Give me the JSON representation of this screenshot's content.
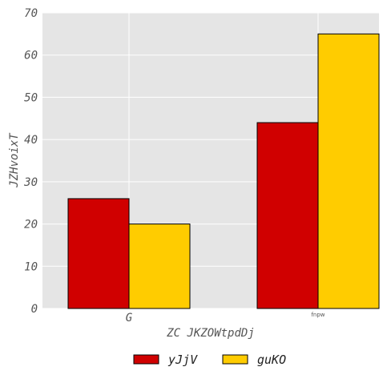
{
  "chart_data": {
    "type": "bar",
    "categories": [
      "G",
      "fnpw"
    ],
    "series": [
      {
        "name": "yJjV",
        "values": [
          26,
          44
        ],
        "color": "#d00000"
      },
      {
        "name": "guKO",
        "values": [
          20,
          65
        ],
        "color": "#ffcc00"
      }
    ],
    "xlabel": "ZC JKZOWtpdDj",
    "ylabel": "JZHvoixT",
    "ylim": [
      0,
      70
    ],
    "yticks": [
      "0",
      "10",
      "20",
      "30",
      "40",
      "50",
      "60",
      "70"
    ],
    "grid": true,
    "legend_position": "bottom-center"
  }
}
